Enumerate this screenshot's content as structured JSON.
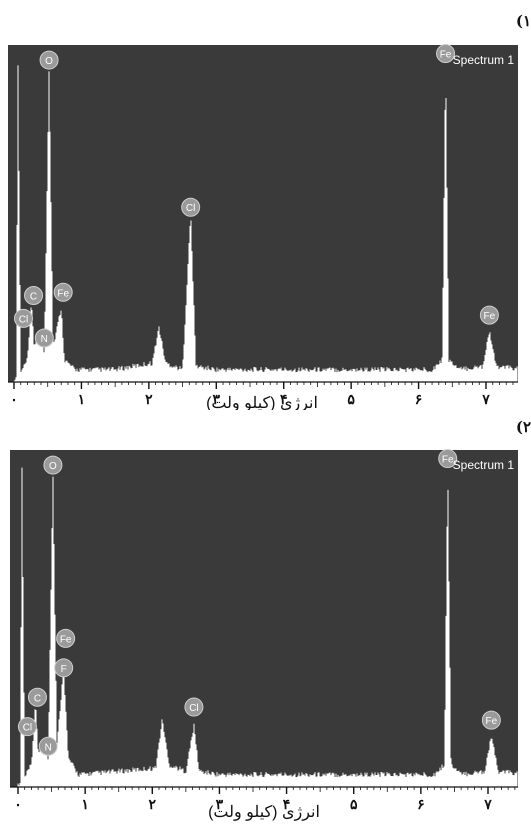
{
  "panels": [
    {
      "label": "(۱",
      "legend": "Spectrum 1",
      "xlabel": "انرژی (کیلو ولت)"
    },
    {
      "label": "(۲",
      "legend": "Spectrum 1",
      "xlabel": "انرژی (کیلو ولت)"
    }
  ],
  "colors": {
    "plot_bg": "#3a3a3a",
    "spectrum": "#ffffff",
    "peak_marker": "#9a9a9a"
  },
  "chart_data": [
    {
      "type": "line",
      "title": "",
      "legend": "Spectrum 1",
      "xlabel": "انرژی (کیلو ولت)",
      "ylabel": "",
      "xlim": [
        0,
        7.6
      ],
      "ylim": [
        0,
        100
      ],
      "x_tick_labels": [
        "۰",
        "۱",
        "۲",
        "۳",
        "۴",
        "۵",
        "۶",
        "۷"
      ],
      "x_tick_values": [
        0,
        1,
        2,
        3,
        4,
        5,
        6,
        7
      ],
      "series": [
        {
          "values": [
            [
              0.03,
              0
            ],
            [
              0.06,
              98
            ],
            [
              0.1,
              2
            ],
            [
              0.2,
              6
            ],
            [
              0.26,
              24
            ],
            [
              0.3,
              10
            ],
            [
              0.39,
              15
            ],
            [
              0.45,
              8
            ],
            [
              0.52,
              96
            ],
            [
              0.58,
              10
            ],
            [
              0.7,
              22
            ],
            [
              0.75,
              6
            ],
            [
              0.9,
              3
            ],
            [
              1.5,
              3
            ],
            [
              2.05,
              5
            ],
            [
              2.15,
              16
            ],
            [
              2.25,
              5
            ],
            [
              2.5,
              3
            ],
            [
              2.62,
              51
            ],
            [
              2.7,
              4
            ],
            [
              3.0,
              3
            ],
            [
              6.2,
              3
            ],
            [
              6.35,
              6
            ],
            [
              6.4,
              98
            ],
            [
              6.45,
              6
            ],
            [
              6.6,
              3
            ],
            [
              6.95,
              4
            ],
            [
              7.05,
              15
            ],
            [
              7.15,
              4
            ],
            [
              7.6,
              3
            ]
          ]
        }
      ],
      "peaks": [
        {
          "element": "O",
          "energy": 0.52,
          "height": 96
        },
        {
          "element": "C",
          "energy": 0.26,
          "height": 24
        },
        {
          "element": "Cl",
          "energy": 0.2,
          "height": 17
        },
        {
          "element": "N",
          "energy": 0.39,
          "height": 11
        },
        {
          "element": "Fe",
          "energy": 0.7,
          "height": 25
        },
        {
          "element": "Cl",
          "energy": 2.62,
          "height": 51
        },
        {
          "element": "Fe",
          "energy": 6.4,
          "height": 98
        },
        {
          "element": "Fe",
          "energy": 7.05,
          "height": 18
        }
      ]
    },
    {
      "type": "line",
      "title": "",
      "legend": "Spectrum 1",
      "xlabel": "انرژی (کیلو ولت)",
      "ylabel": "",
      "xlim": [
        0,
        7.6
      ],
      "ylim": [
        0,
        100
      ],
      "x_tick_labels": [
        "۰",
        "۱",
        "۲",
        "۳",
        "۴",
        "۵",
        "۶",
        "۷"
      ],
      "x_tick_values": [
        0,
        1,
        2,
        3,
        4,
        5,
        6,
        7
      ],
      "series": [
        {
          "values": [
            [
              0.03,
              0
            ],
            [
              0.06,
              98
            ],
            [
              0.1,
              2
            ],
            [
              0.2,
              6
            ],
            [
              0.26,
              25
            ],
            [
              0.3,
              10
            ],
            [
              0.39,
              12
            ],
            [
              0.45,
              8
            ],
            [
              0.52,
              96
            ],
            [
              0.58,
              12
            ],
            [
              0.68,
              36
            ],
            [
              0.75,
              8
            ],
            [
              0.9,
              3
            ],
            [
              1.5,
              4
            ],
            [
              2.05,
              5
            ],
            [
              2.15,
              20
            ],
            [
              2.25,
              6
            ],
            [
              2.5,
              4
            ],
            [
              2.62,
              18
            ],
            [
              2.7,
              4
            ],
            [
              3.0,
              3
            ],
            [
              6.2,
              3
            ],
            [
              6.35,
              6
            ],
            [
              6.4,
              98
            ],
            [
              6.45,
              6
            ],
            [
              6.6,
              3
            ],
            [
              6.95,
              4
            ],
            [
              7.05,
              15
            ],
            [
              7.15,
              4
            ],
            [
              7.6,
              3
            ]
          ]
        }
      ],
      "peaks": [
        {
          "element": "O",
          "energy": 0.52,
          "height": 96
        },
        {
          "element": "C",
          "energy": 0.26,
          "height": 25
        },
        {
          "element": "Cl",
          "energy": 0.2,
          "height": 16
        },
        {
          "element": "N",
          "energy": 0.39,
          "height": 10
        },
        {
          "element": "F",
          "energy": 0.68,
          "height": 34
        },
        {
          "element": "Fe",
          "energy": 0.68,
          "height": 43
        },
        {
          "element": "Cl",
          "energy": 2.62,
          "height": 22
        },
        {
          "element": "Fe",
          "energy": 6.4,
          "height": 98
        },
        {
          "element": "Fe",
          "energy": 7.05,
          "height": 18
        }
      ]
    }
  ]
}
